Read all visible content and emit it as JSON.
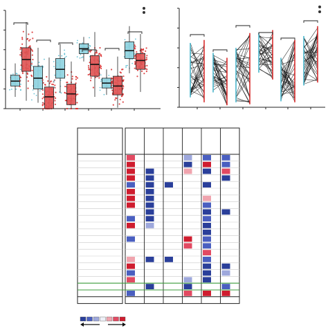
{
  "colors": {
    "blue_box": "#8fd3e0",
    "blue_edge": "#2a7f99",
    "red_box": "#e05555",
    "red_edge": "#9a1f1f",
    "red_point": "#d92b2b",
    "blue_point": "#4ab6cc",
    "line": "#111111",
    "deep_blue": "#2a3f9a",
    "mid_blue": "#4a5fc0",
    "light_blue": "#9ea8dc",
    "pale": "#eef0f7",
    "light_red": "#f0a4ae",
    "mid_red": "#e24a62",
    "deep_red": "#cf1d2f",
    "highlight": "#3c9b3c",
    "grid": "#c9c9c9"
  },
  "chart_data": [
    {
      "id": "panel-a",
      "type": "box",
      "title": "",
      "xlabel": "",
      "ylabel": "",
      "ylim": [
        0,
        10
      ],
      "grid": false,
      "legend_marks": 2,
      "groups": [
        {
          "pair": [
            {
              "series": "blue",
              "q1": 2.3,
              "median": 2.8,
              "q3": 3.4,
              "whisker_low": 1.2,
              "whisker_high": 4.6
            },
            {
              "series": "red",
              "q1": 3.8,
              "median": 5.0,
              "q3": 6.2,
              "whisker_low": 0.8,
              "whisker_high": 8.8
            }
          ]
        },
        {
          "pair": [
            {
              "series": "blue",
              "q1": 2.0,
              "median": 3.1,
              "q3": 4.3,
              "whisker_low": 0.6,
              "whisker_high": 6.2
            },
            {
              "series": "red",
              "q1": 0.0,
              "median": 1.2,
              "q3": 2.2,
              "whisker_low": 0.0,
              "whisker_high": 5.2
            }
          ]
        },
        {
          "pair": [
            {
              "series": "blue",
              "q1": 3.1,
              "median": 4.0,
              "q3": 5.1,
              "whisker_low": 1.6,
              "whisker_high": 6.6
            },
            {
              "series": "red",
              "q1": 0.4,
              "median": 1.5,
              "q3": 2.5,
              "whisker_low": 0.0,
              "whisker_high": 4.8
            }
          ]
        },
        {
          "pair": [
            {
              "series": "blue",
              "q1": 5.6,
              "median": 6.1,
              "q3": 6.6,
              "whisker_low": 4.8,
              "whisker_high": 7.3
            },
            {
              "series": "red",
              "q1": 3.3,
              "median": 4.5,
              "q3": 5.4,
              "whisker_low": 1.2,
              "whisker_high": 7.8
            }
          ]
        },
        {
          "pair": [
            {
              "series": "blue",
              "q1": 2.1,
              "median": 2.6,
              "q3": 3.1,
              "whisker_low": 1.4,
              "whisker_high": 4.0
            },
            {
              "series": "red",
              "q1": 1.4,
              "median": 2.3,
              "q3": 3.3,
              "whisker_low": 0.1,
              "whisker_high": 5.3
            }
          ]
        },
        {
          "pair": [
            {
              "series": "blue",
              "q1": 5.1,
              "median": 5.9,
              "q3": 6.8,
              "whisker_low": 3.6,
              "whisker_high": 8.4
            },
            {
              "series": "red",
              "q1": 4.0,
              "median": 4.9,
              "q3": 5.6,
              "whisker_low": 1.7,
              "whisker_high": 7.6
            }
          ]
        }
      ],
      "significance_brackets": 6
    },
    {
      "id": "panel-b",
      "type": "paired-line",
      "title": "",
      "xlabel": "",
      "ylabel": "",
      "ylim": [
        0,
        10
      ],
      "grid": false,
      "legend_marks": 2,
      "groups": [
        {
          "left_range": [
            1.0,
            6.5
          ],
          "right_range": [
            0.5,
            6.8
          ]
        },
        {
          "left_range": [
            1.5,
            5.5
          ],
          "right_range": [
            0.2,
            5.0
          ]
        },
        {
          "left_range": [
            0.5,
            6.0
          ],
          "right_range": [
            0.3,
            7.5
          ]
        },
        {
          "left_range": [
            3.5,
            7.5
          ],
          "right_range": [
            2.8,
            7.8
          ]
        },
        {
          "left_range": [
            0.6,
            5.0
          ],
          "right_range": [
            0.5,
            6.8
          ]
        },
        {
          "left_range": [
            2.2,
            7.2
          ],
          "right_range": [
            2.5,
            8.2
          ]
        }
      ],
      "significance_brackets": 6
    },
    {
      "id": "panel-c",
      "type": "heatmap",
      "title": "",
      "xlabel": "",
      "ylabel": "",
      "n_rows": 22,
      "n_cols": 6,
      "highlight_rows": [
        19,
        20
      ],
      "legend_scale": [
        "deep_blue",
        "mid_blue",
        "light_blue",
        "pale",
        "light_red",
        "mid_red",
        "deep_red"
      ],
      "cells": [
        [
          0,
          0,
          "mid_red"
        ],
        [
          0,
          3,
          "light_blue"
        ],
        [
          0,
          4,
          "mid_blue"
        ],
        [
          0,
          5,
          "mid_blue"
        ],
        [
          1,
          0,
          "deep_red"
        ],
        [
          1,
          3,
          "deep_blue"
        ],
        [
          1,
          4,
          "deep_red"
        ],
        [
          1,
          5,
          "mid_blue"
        ],
        [
          2,
          0,
          "deep_red"
        ],
        [
          2,
          1,
          "deep_blue"
        ],
        [
          2,
          3,
          "light_red"
        ],
        [
          2,
          4,
          "deep_blue"
        ],
        [
          2,
          5,
          "mid_red"
        ],
        [
          3,
          0,
          "deep_red"
        ],
        [
          3,
          1,
          "deep_blue"
        ],
        [
          3,
          5,
          "deep_blue"
        ],
        [
          4,
          0,
          "mid_blue"
        ],
        [
          4,
          1,
          "deep_blue"
        ],
        [
          4,
          2,
          "deep_blue"
        ],
        [
          4,
          4,
          "deep_blue"
        ],
        [
          5,
          0,
          "deep_red"
        ],
        [
          5,
          1,
          "deep_blue"
        ],
        [
          6,
          0,
          "deep_red"
        ],
        [
          6,
          1,
          "deep_blue"
        ],
        [
          6,
          4,
          "light_red"
        ],
        [
          7,
          0,
          "deep_red"
        ],
        [
          7,
          1,
          "deep_blue"
        ],
        [
          7,
          4,
          "mid_blue"
        ],
        [
          8,
          1,
          "deep_blue"
        ],
        [
          8,
          4,
          "deep_blue"
        ],
        [
          8,
          5,
          "deep_blue"
        ],
        [
          9,
          0,
          "mid_blue"
        ],
        [
          9,
          1,
          "deep_blue"
        ],
        [
          9,
          4,
          "mid_blue"
        ],
        [
          10,
          0,
          "deep_red"
        ],
        [
          10,
          1,
          "light_blue"
        ],
        [
          10,
          4,
          "deep_blue"
        ],
        [
          11,
          4,
          "deep_blue"
        ],
        [
          12,
          0,
          "mid_blue"
        ],
        [
          12,
          3,
          "deep_red"
        ],
        [
          12,
          4,
          "mid_blue"
        ],
        [
          13,
          3,
          "mid_red"
        ],
        [
          13,
          4,
          "mid_blue"
        ],
        [
          14,
          4,
          "mid_red"
        ],
        [
          15,
          0,
          "light_red"
        ],
        [
          15,
          1,
          "deep_blue"
        ],
        [
          15,
          2,
          "deep_blue"
        ],
        [
          15,
          4,
          "mid_blue"
        ],
        [
          16,
          0,
          "deep_red"
        ],
        [
          16,
          4,
          "deep_blue"
        ],
        [
          16,
          5,
          "deep_blue"
        ],
        [
          17,
          0,
          "mid_blue"
        ],
        [
          17,
          4,
          "deep_blue"
        ],
        [
          17,
          5,
          "light_blue"
        ],
        [
          18,
          0,
          "mid_red"
        ],
        [
          18,
          3,
          "light_blue"
        ],
        [
          18,
          4,
          "deep_blue"
        ],
        [
          19,
          1,
          "deep_blue"
        ],
        [
          19,
          3,
          "deep_blue"
        ],
        [
          19,
          5,
          "mid_blue"
        ],
        [
          20,
          0,
          "mid_blue"
        ],
        [
          20,
          3,
          "mid_red"
        ],
        [
          20,
          4,
          "deep_red"
        ],
        [
          20,
          5,
          "deep_red"
        ]
      ]
    }
  ]
}
